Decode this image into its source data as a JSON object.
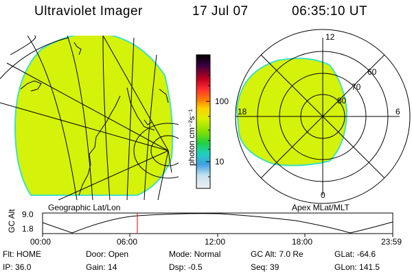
{
  "header": {
    "instrument": "Ultraviolet Imager",
    "date": "17 Jul 07",
    "time": "06:35:10 UT"
  },
  "colorbar": {
    "unit_label": "photon cm⁻²s⁻¹",
    "ticks": [
      "100",
      "10"
    ]
  },
  "polar_plot": {
    "mlt_labels": [
      "12",
      "18",
      "6",
      "0"
    ],
    "lat_labels": [
      "60",
      "70",
      "80"
    ]
  },
  "panel_labels": {
    "left": "Geographic Lat/Lon",
    "right": "Apex MLat/MLT"
  },
  "altitude_plot": {
    "ylabel": "GC Alt",
    "yticks": [
      "9.0",
      "1.8"
    ],
    "xticks": [
      "00:00",
      "06:00",
      "12:00",
      "18:00",
      "23:59"
    ],
    "current_time_marker": "06:35"
  },
  "info": {
    "row1": [
      {
        "label": "Flt:",
        "value": "HOME"
      },
      {
        "label": "Door:",
        "value": "Open"
      },
      {
        "label": "Mode:",
        "value": "Normal"
      },
      {
        "label": "GC Alt:",
        "value": "7.0 Re"
      },
      {
        "label": "GLat:",
        "value": "-64.6"
      }
    ],
    "row2": [
      {
        "label": "IP:",
        "value": "36.0"
      },
      {
        "label": "Gain:",
        "value": "14"
      },
      {
        "label": "Dsp:",
        "value": "-0.5"
      },
      {
        "label": "Seq:",
        "value": "39"
      },
      {
        "label": "GLon:",
        "value": "141.5"
      }
    ]
  },
  "colors": {
    "aurora_fill": "#d4f20a",
    "aurora_edge": "#40e0c0",
    "marker": "#e00000"
  }
}
